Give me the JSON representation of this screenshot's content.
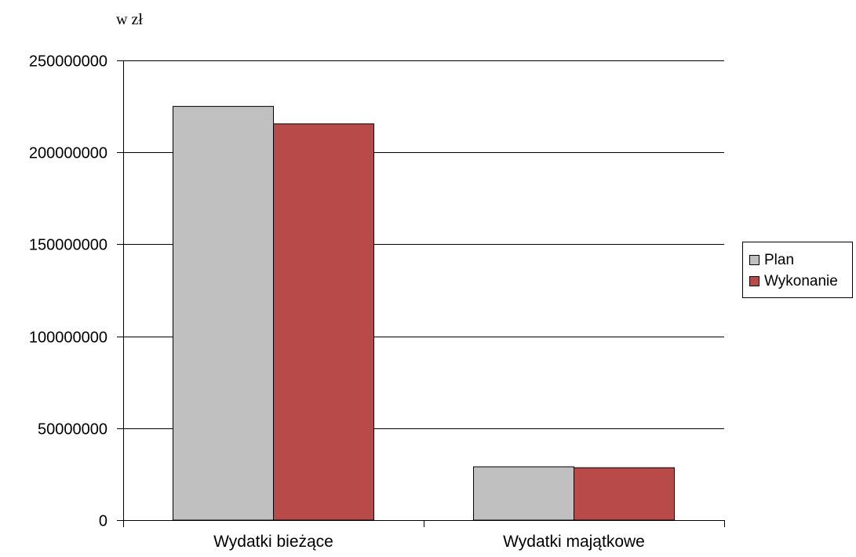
{
  "unit_label": "w zł",
  "chart_data": {
    "type": "bar",
    "title": "",
    "xlabel": "",
    "ylabel": "w zł",
    "categories": [
      "Wydatki bieżące",
      "Wydatki majątkowe"
    ],
    "series": [
      {
        "name": "Plan",
        "color": "#c0c0c0",
        "values": [
          225000000,
          29000000
        ]
      },
      {
        "name": "Wykonanie",
        "color": "#b84a4a",
        "values": [
          215500000,
          28500000
        ]
      }
    ],
    "ylim": [
      0,
      250000000
    ],
    "yticks": [
      0,
      50000000,
      100000000,
      150000000,
      200000000,
      250000000
    ],
    "ytick_labels": [
      "0",
      "50000000",
      "100000000",
      "150000000",
      "200000000",
      "250000000"
    ],
    "grid": "horizontal",
    "legend_position": "right"
  },
  "colors": {
    "plan": "#c0c0c0",
    "wykonanie": "#b84a4a",
    "gridline": "#000000"
  }
}
